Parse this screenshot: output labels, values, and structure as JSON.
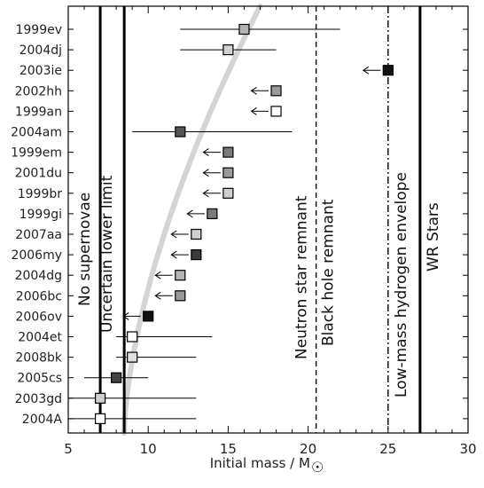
{
  "chart_data": {
    "type": "scatter",
    "title": "",
    "xlabel": "Initial mass / M",
    "xlabel_symbol": "☉",
    "ylabel": "",
    "xlim": [
      5,
      30
    ],
    "x_ticks": [
      5,
      10,
      15,
      20,
      25,
      30
    ],
    "grid": false,
    "legend": "none",
    "categories": [
      "1999ev",
      "2004dj",
      "2003ie",
      "2002hh",
      "1999an",
      "2004am",
      "1999em",
      "2001du",
      "1999br",
      "1999gi",
      "2007aa",
      "2006my",
      "2004dg",
      "2006bc",
      "2006ov",
      "2004et",
      "2008bk",
      "2005cs",
      "2003gd",
      "2004A"
    ],
    "points": [
      {
        "name": "1999ev",
        "mass": 16,
        "err_low": 12,
        "err_high": 22,
        "upper_limit": false,
        "shade": "#b4b4b4"
      },
      {
        "name": "2004dj",
        "mass": 15,
        "err_low": 12,
        "err_high": 18,
        "upper_limit": false,
        "shade": "#d2d2d2"
      },
      {
        "name": "2003ie",
        "mass": 25,
        "err_low": null,
        "err_high": null,
        "upper_limit": true,
        "shade": "#111111"
      },
      {
        "name": "2002hh",
        "mass": 18,
        "err_low": null,
        "err_high": null,
        "upper_limit": true,
        "shade": "#9a9a9a"
      },
      {
        "name": "1999an",
        "mass": 18,
        "err_low": null,
        "err_high": null,
        "upper_limit": true,
        "shade": "#ffffff"
      },
      {
        "name": "2004am",
        "mass": 12,
        "err_low": 9,
        "err_high": 19,
        "upper_limit": false,
        "shade": "#555555"
      },
      {
        "name": "1999em",
        "mass": 15,
        "err_low": null,
        "err_high": null,
        "upper_limit": true,
        "shade": "#7a7a7a"
      },
      {
        "name": "2001du",
        "mass": 15,
        "err_low": null,
        "err_high": null,
        "upper_limit": true,
        "shade": "#9a9a9a"
      },
      {
        "name": "1999br",
        "mass": 15,
        "err_low": null,
        "err_high": null,
        "upper_limit": true,
        "shade": "#cfcfcf"
      },
      {
        "name": "1999gi",
        "mass": 14,
        "err_low": null,
        "err_high": null,
        "upper_limit": true,
        "shade": "#7a7a7a"
      },
      {
        "name": "2007aa",
        "mass": 13,
        "err_low": null,
        "err_high": null,
        "upper_limit": true,
        "shade": "#cfcfcf"
      },
      {
        "name": "2006my",
        "mass": 13,
        "err_low": null,
        "err_high": null,
        "upper_limit": true,
        "shade": "#3a3a3a"
      },
      {
        "name": "2004dg",
        "mass": 12,
        "err_low": null,
        "err_high": null,
        "upper_limit": true,
        "shade": "#b4b4b4"
      },
      {
        "name": "2006bc",
        "mass": 12,
        "err_low": null,
        "err_high": null,
        "upper_limit": true,
        "shade": "#9a9a9a"
      },
      {
        "name": "2006ov",
        "mass": 10,
        "err_low": null,
        "err_high": null,
        "upper_limit": true,
        "shade": "#111111"
      },
      {
        "name": "2004et",
        "mass": 9,
        "err_low": 8,
        "err_high": 14,
        "upper_limit": false,
        "shade": "#ffffff"
      },
      {
        "name": "2008bk",
        "mass": 9,
        "err_low": 8,
        "err_high": 13,
        "upper_limit": false,
        "shade": "#e0e0e0"
      },
      {
        "name": "2005cs",
        "mass": 8,
        "err_low": 6,
        "err_high": 10,
        "upper_limit": false,
        "shade": "#444444"
      },
      {
        "name": "2003gd",
        "mass": 7,
        "err_low": 5,
        "err_high": 13,
        "upper_limit": false,
        "shade": "#cfcfcf"
      },
      {
        "name": "2004A",
        "mass": 7,
        "err_low": 5,
        "err_high": 13,
        "upper_limit": false,
        "shade": "#ffffff"
      }
    ],
    "vertical_lines": [
      {
        "mass": 7,
        "style": "solid",
        "label": "No supernovae"
      },
      {
        "mass": 8.5,
        "style": "solid",
        "label": "Uncertain lower limit"
      },
      {
        "mass": 20.5,
        "style": "dashed",
        "label_left": "Neutron star remnant",
        "label_right": "Black hole remnant"
      },
      {
        "mass": 25,
        "style": "dashdot",
        "label": "Low-mass hydrogen envelope"
      },
      {
        "mass": 27,
        "style": "solid",
        "label": "WR Stars"
      }
    ],
    "curve": {
      "color": "#d4d4d4"
    }
  }
}
